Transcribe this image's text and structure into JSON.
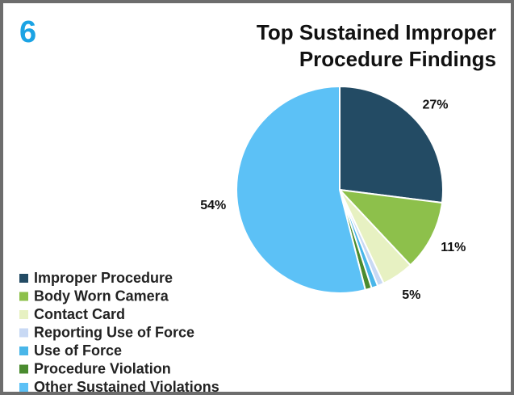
{
  "chart_data": {
    "type": "pie",
    "figure_number": "6",
    "title": [
      "Top Sustained Improper",
      "Procedure Findings"
    ],
    "categories": [
      "Improper Procedure",
      "Body Worn Camera",
      "Contact Card",
      "Reporting Use of Force",
      "Use of Force",
      "Procedure Violation",
      "Other Sustained Violations"
    ],
    "values": [
      27,
      11,
      5,
      1,
      1,
      1,
      54
    ],
    "value_labels": [
      "27%",
      "11%",
      "5%",
      null,
      null,
      null,
      "54%"
    ],
    "colors": [
      "#234b64",
      "#8dc04b",
      "#e7f1c2",
      "#c8d9f4",
      "#49b6e9",
      "#4a8b2f",
      "#5cc1f6"
    ],
    "legend": "bottom-left"
  }
}
